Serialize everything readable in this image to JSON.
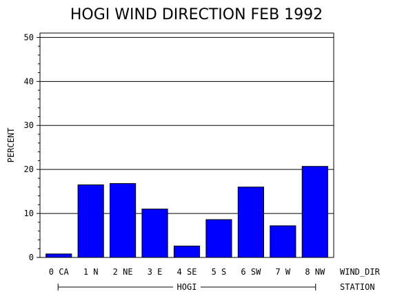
{
  "chart_data": {
    "type": "bar",
    "title": "HOGI WIND DIRECTION FEB 1992",
    "ylabel": "PERCENT",
    "xlabel": "WIND_DIR",
    "group_axis_label": "STATION",
    "group_label": "HOGI",
    "categories": [
      "0 CA",
      "1 N",
      "2 NE",
      "3 E",
      "4 SE",
      "5 S",
      "6 SW",
      "7 W",
      "8 NW"
    ],
    "values": [
      0.8,
      16.5,
      16.8,
      11.0,
      2.6,
      8.6,
      16.0,
      7.2,
      20.7
    ],
    "ylim": [
      0,
      51
    ],
    "yticks": [
      0,
      10,
      20,
      30,
      40,
      50
    ],
    "grid": true,
    "bar_color": "#0000ff"
  }
}
